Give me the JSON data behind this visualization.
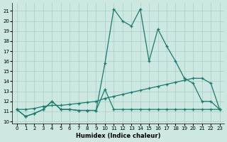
{
  "xlabel": "Humidex (Indice chaleur)",
  "bg_color": "#cce8e0",
  "grid_color": "#aacccc",
  "line_color": "#1a7a6e",
  "xlim": [
    -0.5,
    23.5
  ],
  "ylim": [
    9.8,
    21.8
  ],
  "xticks": [
    0,
    1,
    2,
    3,
    4,
    5,
    6,
    7,
    8,
    9,
    10,
    11,
    12,
    13,
    14,
    15,
    16,
    17,
    18,
    19,
    20,
    21,
    22,
    23
  ],
  "yticks": [
    10,
    11,
    12,
    13,
    14,
    15,
    16,
    17,
    18,
    19,
    20,
    21
  ],
  "line1_x": [
    0,
    1,
    2,
    3,
    4,
    5,
    6,
    7,
    8,
    9,
    10,
    11,
    12,
    13,
    14,
    15,
    16,
    17,
    18,
    19,
    20,
    21,
    22,
    23
  ],
  "line1_y": [
    11.2,
    10.5,
    10.8,
    11.2,
    12.0,
    11.2,
    11.2,
    11.1,
    11.1,
    11.1,
    15.8,
    21.2,
    20.0,
    19.5,
    21.2,
    16.0,
    19.2,
    17.5,
    16.0,
    14.3,
    13.8,
    12.0,
    12.0,
    11.2
  ],
  "line2_x": [
    0,
    1,
    2,
    3,
    4,
    5,
    6,
    7,
    8,
    9,
    10,
    11,
    12,
    13,
    14,
    15,
    16,
    17,
    18,
    19,
    20,
    21,
    22,
    23
  ],
  "line2_y": [
    11.2,
    10.5,
    10.8,
    11.2,
    12.0,
    11.2,
    11.2,
    11.1,
    11.1,
    11.1,
    13.2,
    11.2,
    11.2,
    11.2,
    11.2,
    11.2,
    11.2,
    11.2,
    11.2,
    11.2,
    11.2,
    11.2,
    11.2,
    11.2
  ],
  "line3_x": [
    0,
    1,
    2,
    3,
    4,
    5,
    6,
    7,
    8,
    9,
    10,
    11,
    12,
    13,
    14,
    15,
    16,
    17,
    18,
    19,
    20,
    21,
    22,
    23
  ],
  "line3_y": [
    11.2,
    11.2,
    11.3,
    11.5,
    11.6,
    11.6,
    11.7,
    11.8,
    11.9,
    12.0,
    12.3,
    12.5,
    12.7,
    12.9,
    13.1,
    13.3,
    13.5,
    13.7,
    13.9,
    14.1,
    14.3,
    14.3,
    13.8,
    11.2
  ]
}
